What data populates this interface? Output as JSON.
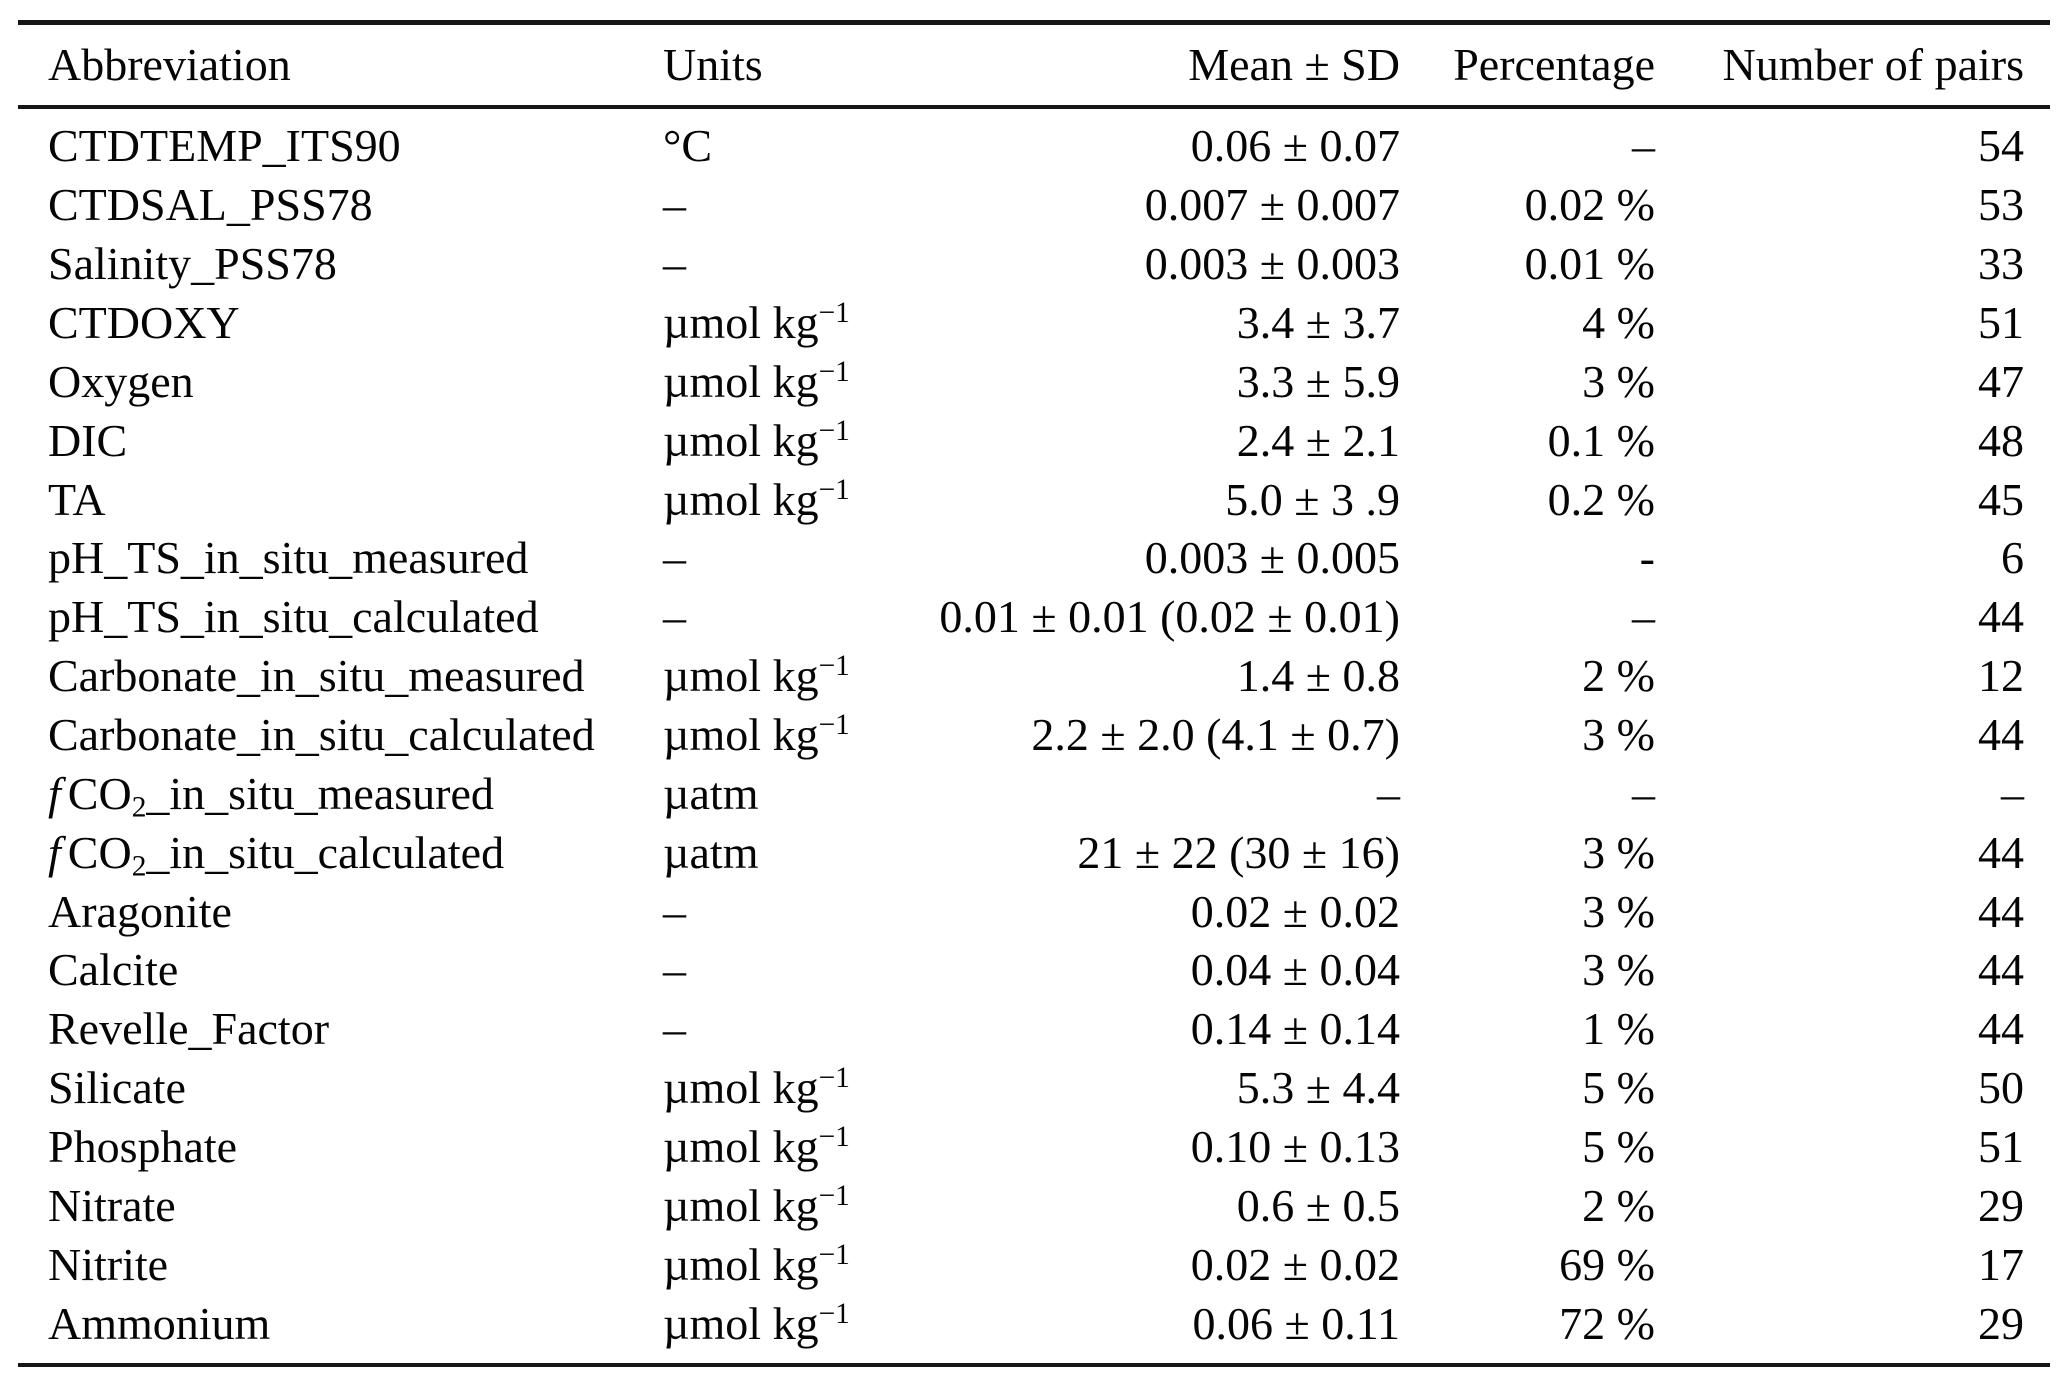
{
  "table": {
    "columns": [
      "Abbreviation",
      "Units",
      "Mean ± SD",
      "Percentage",
      "Number of pairs"
    ],
    "rows": [
      {
        "a_it": "",
        "a": "CTDTEMP_ITS90",
        "a_sub": "",
        "a_rest": "",
        "u": "°C",
        "u_sup": "",
        "mean": "0.06 ± 0.07",
        "pct": "–",
        "n": "54"
      },
      {
        "a_it": "",
        "a": "CTDSAL_PSS78",
        "a_sub": "",
        "a_rest": "",
        "u": "–",
        "u_sup": "",
        "mean": "0.007 ± 0.007",
        "pct": "0.02 %",
        "n": "53"
      },
      {
        "a_it": "",
        "a": "Salinity_PSS78",
        "a_sub": "",
        "a_rest": "",
        "u": "–",
        "u_sup": "",
        "mean": "0.003 ± 0.003",
        "pct": "0.01 %",
        "n": "33"
      },
      {
        "a_it": "",
        "a": "CTDOXY",
        "a_sub": "",
        "a_rest": "",
        "u": "µmol kg",
        "u_sup": "−1",
        "mean": "3.4 ± 3.7",
        "pct": "4 %",
        "n": "51"
      },
      {
        "a_it": "",
        "a": "Oxygen",
        "a_sub": "",
        "a_rest": "",
        "u": "µmol kg",
        "u_sup": "−1",
        "mean": "3.3 ± 5.9",
        "pct": "3 %",
        "n": "47"
      },
      {
        "a_it": "",
        "a": "DIC",
        "a_sub": "",
        "a_rest": "",
        "u": "µmol kg",
        "u_sup": "−1",
        "mean": "2.4 ± 2.1",
        "pct": "0.1 %",
        "n": "48"
      },
      {
        "a_it": "",
        "a": "TA",
        "a_sub": "",
        "a_rest": "",
        "u": "µmol kg",
        "u_sup": "−1",
        "mean": "5.0 ± 3 .9",
        "pct": "0.2 %",
        "n": "45"
      },
      {
        "a_it": "",
        "a": "pH_TS_in_situ_measured",
        "a_sub": "",
        "a_rest": "",
        "u": "–",
        "u_sup": "",
        "mean": "0.003 ± 0.005",
        "pct": "-",
        "n": "6"
      },
      {
        "a_it": "",
        "a": "pH_TS_in_situ_calculated",
        "a_sub": "",
        "a_rest": "",
        "u": "–",
        "u_sup": "",
        "mean": "0.01 ± 0.01 (0.02 ± 0.01)",
        "pct": "–",
        "n": "44"
      },
      {
        "a_it": "",
        "a": "Carbonate_in_situ_measured",
        "a_sub": "",
        "a_rest": "",
        "u": "µmol kg",
        "u_sup": "−1",
        "mean": "1.4 ± 0.8",
        "pct": "2 %",
        "n": "12"
      },
      {
        "a_it": "",
        "a": "Carbonate_in_situ_calculated",
        "a_sub": "",
        "a_rest": "",
        "u": "µmol kg",
        "u_sup": "−1",
        "mean": "2.2 ± 2.0 (4.1 ± 0.7)",
        "pct": "3 %",
        "n": "44"
      },
      {
        "a_it": "f",
        "a": "CO",
        "a_sub": "2",
        "a_rest": "_in_situ_measured",
        "u": "µatm",
        "u_sup": "",
        "mean": "–",
        "pct": "–",
        "n": "–"
      },
      {
        "a_it": "f",
        "a": "CO",
        "a_sub": "2",
        "a_rest": "_in_situ_calculated",
        "u": "µatm",
        "u_sup": "",
        "mean": "21 ± 22 (30 ± 16)",
        "pct": "3 %",
        "n": "44"
      },
      {
        "a_it": "",
        "a": "Aragonite",
        "a_sub": "",
        "a_rest": "",
        "u": "–",
        "u_sup": "",
        "mean": "0.02 ± 0.02",
        "pct": "3 %",
        "n": "44"
      },
      {
        "a_it": "",
        "a": "Calcite",
        "a_sub": "",
        "a_rest": "",
        "u": "–",
        "u_sup": "",
        "mean": "0.04 ± 0.04",
        "pct": "3 %",
        "n": "44"
      },
      {
        "a_it": "",
        "a": "Revelle_Factor",
        "a_sub": "",
        "a_rest": "",
        "u": "–",
        "u_sup": "",
        "mean": "0.14 ± 0.14",
        "pct": "1 %",
        "n": "44"
      },
      {
        "a_it": "",
        "a": "Silicate",
        "a_sub": "",
        "a_rest": "",
        "u": "µmol kg",
        "u_sup": "−1",
        "mean": "5.3 ± 4.4",
        "pct": "5 %",
        "n": "50"
      },
      {
        "a_it": "",
        "a": "Phosphate",
        "a_sub": "",
        "a_rest": "",
        "u": "µmol kg",
        "u_sup": "−1",
        "mean": "0.10 ± 0.13",
        "pct": "5 %",
        "n": "51"
      },
      {
        "a_it": "",
        "a": "Nitrate",
        "a_sub": "",
        "a_rest": "",
        "u": "µmol kg",
        "u_sup": "−1",
        "mean": "0.6 ± 0.5",
        "pct": "2 %",
        "n": "29"
      },
      {
        "a_it": "",
        "a": "Nitrite",
        "a_sub": "",
        "a_rest": "",
        "u": "µmol kg",
        "u_sup": "−1",
        "mean": "0.02 ± 0.02",
        "pct": "69 %",
        "n": "17"
      },
      {
        "a_it": "",
        "a": "Ammonium",
        "a_sub": "",
        "a_rest": "",
        "u": "µmol kg",
        "u_sup": "−1",
        "mean": "0.06 ± 0.11",
        "pct": "72 %",
        "n": "29"
      }
    ]
  }
}
